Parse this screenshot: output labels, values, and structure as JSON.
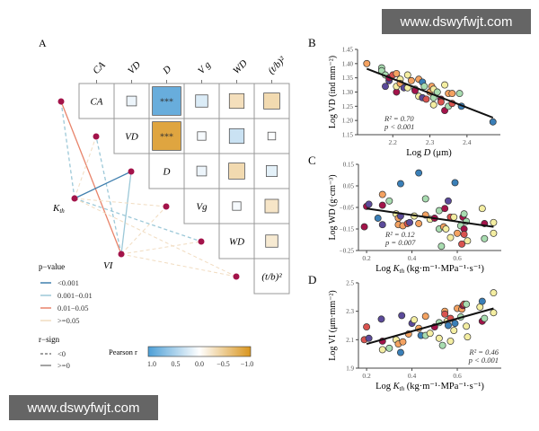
{
  "watermarks": {
    "top": "www.dswyfwjt.com",
    "bottom": "www.dswyfwjt.com"
  },
  "panel_a": {
    "label": "A",
    "variables": [
      "CA",
      "VD",
      "D",
      "Vg",
      "WD",
      "(t/b)²"
    ],
    "header_labels": [
      "CA",
      "VD",
      "D",
      "V g",
      "WD",
      "(t/b)²"
    ],
    "cells": [
      {
        "row": 0,
        "col": 1,
        "r": 0.1,
        "stars": ""
      },
      {
        "row": 0,
        "col": 2,
        "r": 0.85,
        "stars": "***"
      },
      {
        "row": 0,
        "col": 3,
        "r": 0.2,
        "stars": ""
      },
      {
        "row": 0,
        "col": 4,
        "r": -0.3,
        "stars": ""
      },
      {
        "row": 0,
        "col": 5,
        "r": -0.35,
        "stars": ""
      },
      {
        "row": 1,
        "col": 2,
        "r": -0.85,
        "stars": "***"
      },
      {
        "row": 1,
        "col": 3,
        "r": 0.05,
        "stars": ""
      },
      {
        "row": 1,
        "col": 4,
        "r": 0.3,
        "stars": ""
      },
      {
        "row": 1,
        "col": 5,
        "r": 0.02,
        "stars": ""
      },
      {
        "row": 2,
        "col": 3,
        "r": 0.1,
        "stars": ""
      },
      {
        "row": 2,
        "col": 4,
        "r": -0.35,
        "stars": ""
      },
      {
        "row": 2,
        "col": 5,
        "r": 0.15,
        "stars": ""
      },
      {
        "row": 3,
        "col": 4,
        "r": 0.05,
        "stars": ""
      },
      {
        "row": 3,
        "col": 5,
        "r": -0.25,
        "stars": ""
      },
      {
        "row": 4,
        "col": 5,
        "r": -0.2,
        "stars": ""
      }
    ],
    "predictors": [
      "Kth",
      "VI"
    ],
    "edges": [
      {
        "from": "Kth",
        "to": 0,
        "p": "0.001-0.01",
        "sign": "<0"
      },
      {
        "from": "VI",
        "to": 0,
        "p": "0.01-0.05",
        "sign": ">=0"
      },
      {
        "from": "Kth",
        "to": 1,
        "p": ">=0.05",
        "sign": "<0"
      },
      {
        "from": "VI",
        "to": 1,
        "p": "0.001-0.01",
        "sign": "<0"
      },
      {
        "from": "Kth",
        "to": 2,
        "p": "<0.001",
        "sign": ">=0"
      },
      {
        "from": "VI",
        "to": 2,
        "p": "0.001-0.01",
        "sign": ">=0"
      },
      {
        "from": "Kth",
        "to": 3,
        "p": ">=0.05",
        "sign": "<0"
      },
      {
        "from": "VI",
        "to": 3,
        "p": ">=0.05",
        "sign": "<0"
      },
      {
        "from": "Kth",
        "to": 4,
        "p": "0.001-0.01",
        "sign": "<0"
      },
      {
        "from": "VI",
        "to": 4,
        "p": ">=0.05",
        "sign": "<0"
      },
      {
        "from": "Kth",
        "to": 5,
        "p": ">=0.05",
        "sign": "<0"
      },
      {
        "from": "VI",
        "to": 5,
        "p": ">=0.05",
        "sign": "<0"
      }
    ],
    "legend": {
      "p_title": "p−value",
      "p_items": [
        {
          "label": "<0.001",
          "color": "#3f7fae"
        },
        {
          "label": "0.001−0.01",
          "color": "#9cc8d8"
        },
        {
          "label": "0.01−0.05",
          "color": "#e8836a"
        },
        {
          "label": ">=0.05",
          "color": "#f1dcc0"
        }
      ],
      "sign_title": "r−sign",
      "sign_items": [
        {
          "label": "<0",
          "dash": true
        },
        {
          "label": ">=0",
          "dash": false
        }
      ],
      "colorbar_title": "Pearson r",
      "colorbar_ticks": [
        "1.0",
        "0.5",
        "0.0",
        "−0.5",
        "−1.0"
      ],
      "colors": {
        "pos": "#4d9fd6",
        "neg": "#d9951e",
        "mid": "#ffffff"
      }
    }
  },
  "chart_data": [
    {
      "panel": "B",
      "type": "scatter",
      "xlabel_pre": "Log ",
      "xlabel_var": "D",
      "xlabel_post": " (μm)",
      "ylabel": "Log VD (ind mm⁻²)",
      "xlim": [
        2.105,
        2.49
      ],
      "ylim": [
        1.15,
        1.45
      ],
      "xticks": [
        2.2,
        2.3,
        2.4
      ],
      "xtick_labels": [
        "2.2",
        "2.3",
        "2.4"
      ],
      "yticks": [
        1.15,
        1.2,
        1.25,
        1.3,
        1.35,
        1.4,
        1.45
      ],
      "ytick_labels": [
        "1.15",
        "1.20",
        "1.25",
        "1.30",
        "1.35",
        "1.40",
        "1.45"
      ],
      "fit": [
        [
          2.13,
          1.382
        ],
        [
          2.47,
          1.21
        ]
      ],
      "annot": [
        "R² = 0.70",
        "p < 0.001"
      ],
      "annot_pos": "bottom-left",
      "points": [
        [
          2.13,
          1.4,
          2
        ],
        [
          2.17,
          1.385,
          4
        ],
        [
          2.17,
          1.375,
          4
        ],
        [
          2.18,
          1.36,
          4
        ],
        [
          2.18,
          1.32,
          6
        ],
        [
          2.19,
          1.34,
          6
        ],
        [
          2.19,
          1.35,
          0
        ],
        [
          2.2,
          1.36,
          1
        ],
        [
          2.21,
          1.365,
          2
        ],
        [
          2.21,
          1.3,
          0
        ],
        [
          2.21,
          1.32,
          3
        ],
        [
          2.22,
          1.345,
          3
        ],
        [
          2.22,
          1.33,
          2
        ],
        [
          2.23,
          1.315,
          6
        ],
        [
          2.24,
          1.315,
          3
        ],
        [
          2.24,
          1.36,
          3
        ],
        [
          2.25,
          1.34,
          2
        ],
        [
          2.26,
          1.31,
          4
        ],
        [
          2.26,
          1.305,
          0
        ],
        [
          2.27,
          1.345,
          2
        ],
        [
          2.27,
          1.285,
          3
        ],
        [
          2.28,
          1.335,
          5
        ],
        [
          2.28,
          1.28,
          6
        ],
        [
          2.285,
          1.32,
          4
        ],
        [
          2.29,
          1.275,
          1
        ],
        [
          2.3,
          1.3,
          2
        ],
        [
          2.305,
          1.32,
          2
        ],
        [
          2.31,
          1.31,
          3
        ],
        [
          2.31,
          1.28,
          4
        ],
        [
          2.31,
          1.255,
          3
        ],
        [
          2.32,
          1.3,
          4
        ],
        [
          2.33,
          1.275,
          0
        ],
        [
          2.33,
          1.265,
          1
        ],
        [
          2.34,
          1.325,
          3
        ],
        [
          2.34,
          1.235,
          0
        ],
        [
          2.35,
          1.295,
          2
        ],
        [
          2.35,
          1.25,
          4
        ],
        [
          2.36,
          1.26,
          1
        ],
        [
          2.36,
          1.295,
          2
        ],
        [
          2.38,
          1.295,
          4
        ],
        [
          2.385,
          1.25,
          5
        ],
        [
          2.47,
          1.195,
          5
        ]
      ]
    },
    {
      "panel": "C",
      "type": "scatter",
      "xlabel_pre": "Log ",
      "xlabel_var": "Kth",
      "xlabel_post": " (kg·m⁻¹·MPa⁻¹·s⁻¹)",
      "ylabel": "Log WD (g·cm⁻³)",
      "xlim": [
        0.164,
        0.794
      ],
      "ylim": [
        -0.25,
        0.15
      ],
      "xticks": [
        0.2,
        0.4,
        0.6
      ],
      "xtick_labels": [
        "0.2",
        "0.4",
        "0.6"
      ],
      "yticks": [
        -0.25,
        -0.15,
        -0.05,
        0.05,
        0.15
      ],
      "ytick_labels": [
        "−0.25",
        "−0.15",
        "−0.05",
        "0.05",
        "0.15"
      ],
      "fit": [
        [
          0.2,
          -0.055
        ],
        [
          0.76,
          -0.14
        ]
      ],
      "annot": [
        "R² = 0.12",
        "p = 0.007"
      ],
      "annot_pos": "bottom-left",
      "points": [
        [
          0.19,
          -0.14,
          0
        ],
        [
          0.2,
          -0.045,
          0
        ],
        [
          0.21,
          -0.035,
          6
        ],
        [
          0.25,
          -0.1,
          5
        ],
        [
          0.27,
          -0.13,
          6
        ],
        [
          0.27,
          -0.04,
          0
        ],
        [
          0.27,
          0.01,
          2
        ],
        [
          0.3,
          -0.02,
          4
        ],
        [
          0.33,
          -0.08,
          3
        ],
        [
          0.34,
          -0.1,
          2
        ],
        [
          0.34,
          -0.13,
          2
        ],
        [
          0.35,
          -0.09,
          6
        ],
        [
          0.35,
          0.06,
          5
        ],
        [
          0.36,
          -0.135,
          2
        ],
        [
          0.38,
          -0.125,
          1
        ],
        [
          0.39,
          -0.12,
          6
        ],
        [
          0.41,
          -0.09,
          3
        ],
        [
          0.43,
          0.11,
          5
        ],
        [
          0.43,
          -0.125,
          2
        ],
        [
          0.46,
          -0.085,
          2
        ],
        [
          0.46,
          -0.01,
          4
        ],
        [
          0.48,
          -0.105,
          3
        ],
        [
          0.5,
          -0.1,
          0
        ],
        [
          0.52,
          -0.065,
          4
        ],
        [
          0.52,
          -0.15,
          4
        ],
        [
          0.54,
          -0.14,
          2
        ],
        [
          0.545,
          -0.055,
          0
        ],
        [
          0.53,
          -0.23,
          4
        ],
        [
          0.55,
          -0.15,
          3
        ],
        [
          0.56,
          -0.02,
          6
        ],
        [
          0.57,
          -0.095,
          1
        ],
        [
          0.57,
          -0.19,
          3
        ],
        [
          0.585,
          -0.095,
          3
        ],
        [
          0.59,
          0.065,
          5
        ],
        [
          0.6,
          -0.17,
          2
        ],
        [
          0.615,
          -0.135,
          4
        ],
        [
          0.62,
          -0.22,
          1
        ],
        [
          0.625,
          -0.095,
          0
        ],
        [
          0.63,
          -0.08,
          4
        ],
        [
          0.63,
          -0.15,
          0
        ],
        [
          0.63,
          -0.175,
          1
        ],
        [
          0.64,
          -0.115,
          4
        ],
        [
          0.645,
          -0.205,
          3
        ],
        [
          0.71,
          -0.055,
          3
        ],
        [
          0.72,
          -0.125,
          0
        ],
        [
          0.72,
          -0.195,
          4
        ],
        [
          0.76,
          -0.12,
          3
        ],
        [
          0.76,
          -0.17,
          3
        ]
      ]
    },
    {
      "panel": "D",
      "type": "scatter",
      "xlabel_pre": "Log ",
      "xlabel_var": "Kth",
      "xlabel_post": " (kg·m⁻¹·MPa⁻¹·s⁻¹)",
      "ylabel": "Log VI (μm·mm⁻²)",
      "xlim": [
        0.164,
        0.794
      ],
      "ylim": [
        1.9,
        2.5
      ],
      "xticks": [
        0.2,
        0.4,
        0.6
      ],
      "xtick_labels": [
        "0.2",
        "0.4",
        "0.6"
      ],
      "yticks": [
        1.9,
        2.1,
        2.3,
        2.5
      ],
      "ytick_labels": [
        "1.9",
        "2.1",
        "2.3",
        "2.5"
      ],
      "fit": [
        [
          0.2,
          2.07
        ],
        [
          0.76,
          2.32
        ]
      ],
      "annot": [
        "R² = 0.46",
        "p < 0.001"
      ],
      "annot_pos": "bottom-right",
      "points": [
        [
          0.19,
          2.1,
          1
        ],
        [
          0.2,
          2.19,
          1
        ],
        [
          0.21,
          2.11,
          6
        ],
        [
          0.265,
          2.245,
          6
        ],
        [
          0.27,
          2.03,
          3
        ],
        [
          0.27,
          2.09,
          0
        ],
        [
          0.3,
          2.04,
          4
        ],
        [
          0.33,
          2.1,
          3
        ],
        [
          0.34,
          2.07,
          2
        ],
        [
          0.35,
          2.01,
          5
        ],
        [
          0.355,
          2.27,
          6
        ],
        [
          0.36,
          2.085,
          2
        ],
        [
          0.385,
          2.14,
          2
        ],
        [
          0.4,
          2.215,
          6
        ],
        [
          0.41,
          2.24,
          3
        ],
        [
          0.43,
          2.18,
          2
        ],
        [
          0.44,
          2.13,
          5
        ],
        [
          0.46,
          2.265,
          2
        ],
        [
          0.46,
          2.13,
          4
        ],
        [
          0.48,
          2.145,
          3
        ],
        [
          0.5,
          2.19,
          0
        ],
        [
          0.52,
          2.22,
          4
        ],
        [
          0.52,
          2.11,
          3
        ],
        [
          0.535,
          2.06,
          4
        ],
        [
          0.545,
          2.3,
          2
        ],
        [
          0.545,
          2.28,
          1
        ],
        [
          0.555,
          2.23,
          3
        ],
        [
          0.56,
          2.2,
          5
        ],
        [
          0.57,
          2.25,
          1
        ],
        [
          0.57,
          2.09,
          3
        ],
        [
          0.585,
          2.165,
          3
        ],
        [
          0.59,
          2.215,
          5
        ],
        [
          0.6,
          2.32,
          2
        ],
        [
          0.615,
          2.26,
          4
        ],
        [
          0.62,
          2.315,
          2
        ],
        [
          0.625,
          2.34,
          0
        ],
        [
          0.63,
          2.35,
          1
        ],
        [
          0.64,
          2.35,
          4
        ],
        [
          0.64,
          2.195,
          3
        ],
        [
          0.645,
          2.12,
          3
        ],
        [
          0.7,
          2.33,
          3
        ],
        [
          0.71,
          2.37,
          5
        ],
        [
          0.71,
          2.23,
          0
        ],
        [
          0.72,
          2.25,
          4
        ],
        [
          0.76,
          2.43,
          3
        ],
        [
          0.76,
          2.29,
          3
        ]
      ]
    }
  ],
  "palette": [
    "#a3134a",
    "#d9534f",
    "#f4a261",
    "#f4eea2",
    "#a8dcb0",
    "#3a7fb8",
    "#5b4a9a"
  ]
}
